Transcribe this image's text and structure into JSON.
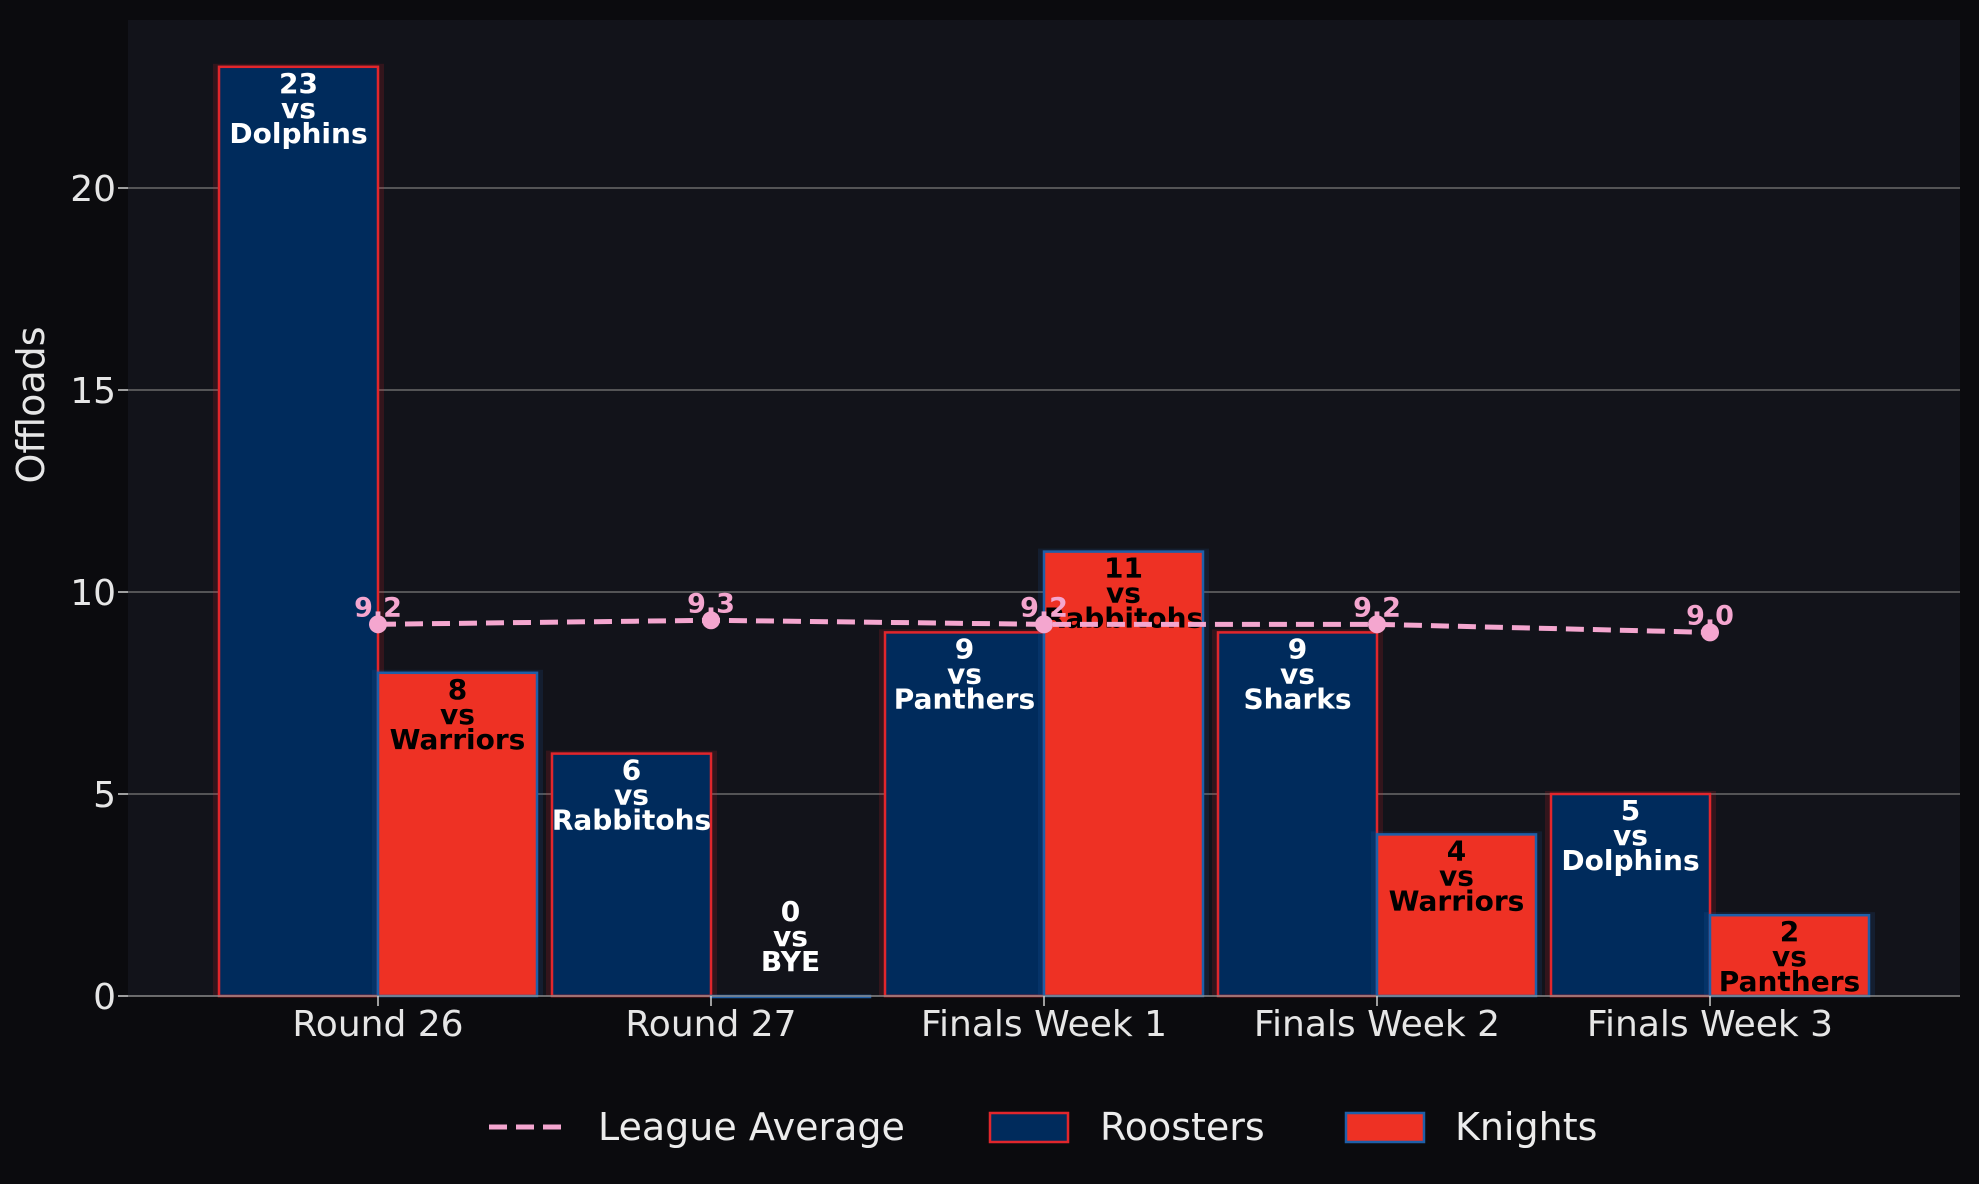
{
  "chart_data": {
    "type": "bar",
    "ylabel": "Offloads",
    "ylim": [
      0,
      24
    ],
    "yticks": [
      0,
      5,
      10,
      15,
      20
    ],
    "grid": true,
    "legend_position": "bottom",
    "categories": [
      "Round 26",
      "Round 27",
      "Finals Week 1",
      "Finals Week 2",
      "Finals Week 3"
    ],
    "series": [
      {
        "name": "Roosters",
        "color": "#002b5c",
        "edge_color": "#e1262c",
        "label_color": "#ffffff",
        "values": [
          23,
          6,
          9,
          9,
          5
        ],
        "opponents": [
          "Dolphins",
          "Rabbitohs",
          "Panthers",
          "Sharks",
          "Dolphins"
        ]
      },
      {
        "name": "Knights",
        "color": "#ee3124",
        "edge_color": "#1f5fa8",
        "label_color": "#000000",
        "values": [
          8,
          0,
          11,
          4,
          2
        ],
        "opponents": [
          "Warriors",
          "BYE",
          "Rabbitohs",
          "Warriors",
          "Panthers"
        ]
      }
    ],
    "league_average": {
      "name": "League Average",
      "color": "#f4a6cf",
      "style": "dashed",
      "values": [
        9.2,
        9.3,
        9.2,
        9.2,
        9.0
      ],
      "labels": [
        "9.2",
        "9.3",
        "9.2",
        "9.2",
        "9.0"
      ]
    },
    "vs_text": "vs"
  }
}
